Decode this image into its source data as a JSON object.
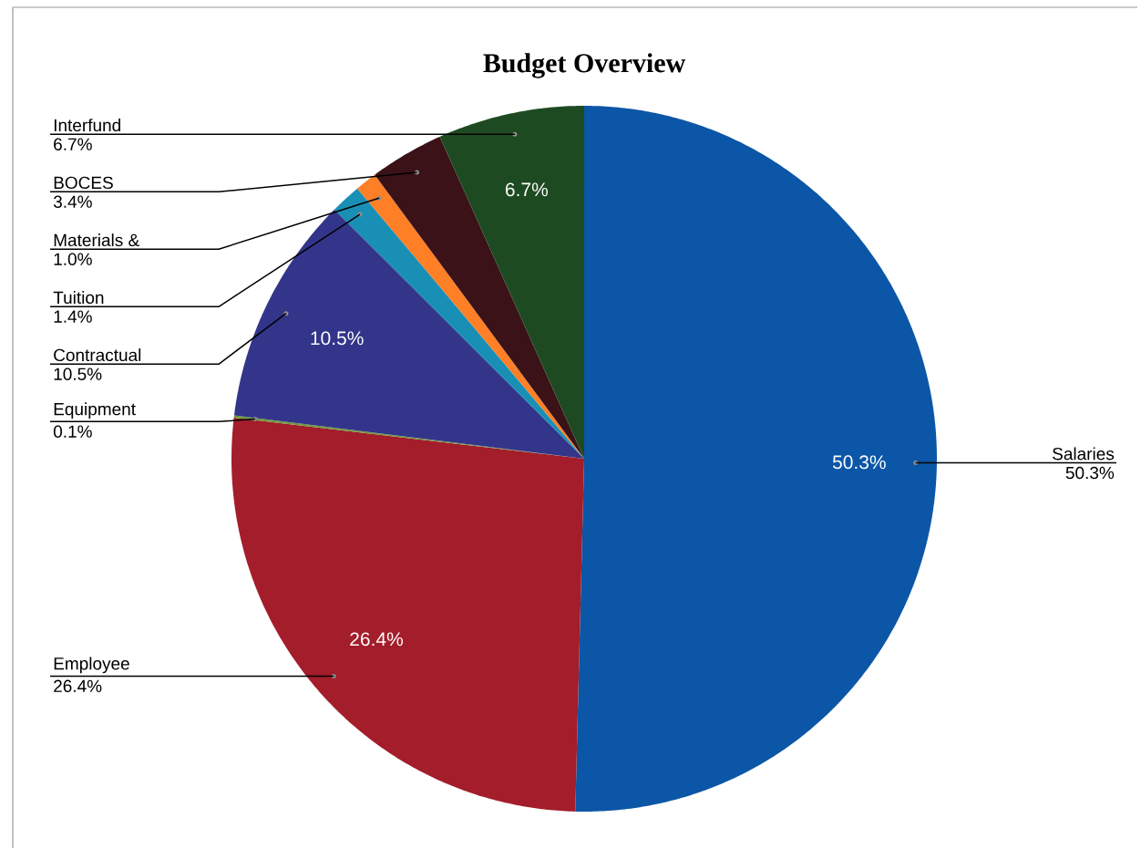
{
  "chart_data": {
    "type": "pie",
    "title": "Budget Overview",
    "categories": [
      "Salaries",
      "Employee",
      "Equipment",
      "Contractual",
      "Tuition",
      "Materials &",
      "BOCES",
      "Interfund"
    ],
    "values": [
      50.3,
      26.4,
      0.1,
      10.5,
      1.4,
      1.0,
      3.4,
      6.7
    ],
    "colors": [
      "#0b56a6",
      "#a31d2b",
      "#6f9a3c",
      "#33358a",
      "#1a8fb5",
      "#ff7f27",
      "#3a1218",
      "#1e4a21"
    ],
    "value_labels": [
      "50.3%",
      "26.4%",
      "0.1%",
      "10.5%",
      "1.4%",
      "1.0%",
      "3.4%",
      "6.7%"
    ]
  }
}
